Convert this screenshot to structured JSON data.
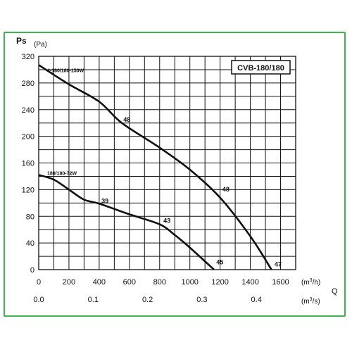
{
  "chart_data": {
    "type": "line",
    "model_label": "CVB-180/180",
    "y_axis": {
      "symbol": "Ps",
      "unit": "(Pa)",
      "range": [
        0,
        320
      ],
      "ticks": [
        0,
        40,
        80,
        120,
        160,
        200,
        240,
        280,
        320
      ]
    },
    "x_axis_primary": {
      "unit": "(m3/h)",
      "range": [
        0,
        1700
      ],
      "ticks": [
        0,
        200,
        400,
        600,
        800,
        1000,
        1200,
        1400,
        1600
      ]
    },
    "x_axis_secondary": {
      "unit": "(m3/s)",
      "symbol": "Q",
      "ticks": [
        "0.0",
        "0.1",
        "0.2",
        "0.3",
        "0.4"
      ],
      "tick_values": [
        0.0,
        0.1,
        0.2,
        0.3,
        0.4
      ]
    },
    "grid": true,
    "series": [
      {
        "name": "4-180/180-150W",
        "x": [
          0,
          200,
          400,
          550,
          800,
          1000,
          1200,
          1400,
          1540
        ],
        "y": [
          307,
          278,
          252,
          220,
          183,
          150,
          108,
          50,
          0
        ]
      },
      {
        "name": "180/180-72W",
        "x": [
          0,
          100,
          200,
          300,
          400,
          600,
          800,
          900,
          1000,
          1160
        ],
        "y": [
          142,
          135,
          120,
          105,
          99,
          83,
          68,
          52,
          33,
          0
        ]
      }
    ],
    "annotations": [
      {
        "text": "48",
        "x": 560,
        "y": 222
      },
      {
        "text": "48",
        "x": 1215,
        "y": 117
      },
      {
        "text": "47",
        "x": 1560,
        "y": 5
      },
      {
        "text": "39",
        "x": 415,
        "y": 100
      },
      {
        "text": "43",
        "x": 825,
        "y": 70
      },
      {
        "text": "45",
        "x": 1175,
        "y": 8
      }
    ]
  }
}
